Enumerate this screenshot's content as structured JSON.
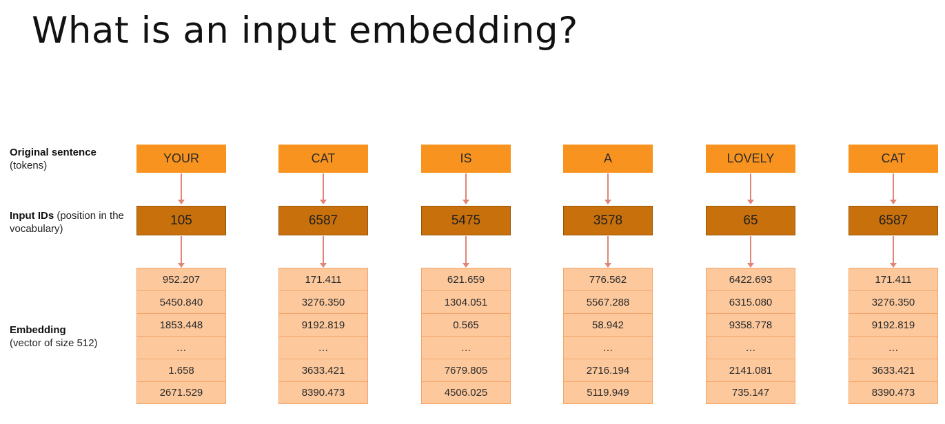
{
  "title": "What is an input embedding?",
  "labels": {
    "tokens_bold": "Original sentence",
    "tokens_rest": "(tokens)",
    "ids_bold": "Input IDs",
    "ids_rest": " (position in the vocabulary)",
    "emb_bold": "Embedding",
    "emb_rest": "(vector of size 512)"
  },
  "columns": [
    {
      "token": "YOUR",
      "id": "105",
      "embedding": [
        "952.207",
        "5450.840",
        "1853.448",
        "…",
        "1.658",
        "2671.529"
      ]
    },
    {
      "token": "CAT",
      "id": "6587",
      "embedding": [
        "171.411",
        "3276.350",
        "9192.819",
        "…",
        "3633.421",
        "8390.473"
      ]
    },
    {
      "token": "IS",
      "id": "5475",
      "embedding": [
        "621.659",
        "1304.051",
        "0.565",
        "…",
        "7679.805",
        "4506.025"
      ]
    },
    {
      "token": "A",
      "id": "3578",
      "embedding": [
        "776.562",
        "5567.288",
        "58.942",
        "…",
        "2716.194",
        "5119.949"
      ]
    },
    {
      "token": "LOVELY",
      "id": "65",
      "embedding": [
        "6422.693",
        "6315.080",
        "9358.778",
        "…",
        "2141.081",
        "735.147"
      ]
    },
    {
      "token": "CAT",
      "id": "6587",
      "embedding": [
        "171.411",
        "3276.350",
        "9192.819",
        "…",
        "3633.421",
        "8390.473"
      ]
    }
  ],
  "colors": {
    "token_fill": "#f7931e",
    "id_fill": "#c8700c",
    "embedding_fill": "#fcc89c",
    "arrow": "#e08575"
  }
}
